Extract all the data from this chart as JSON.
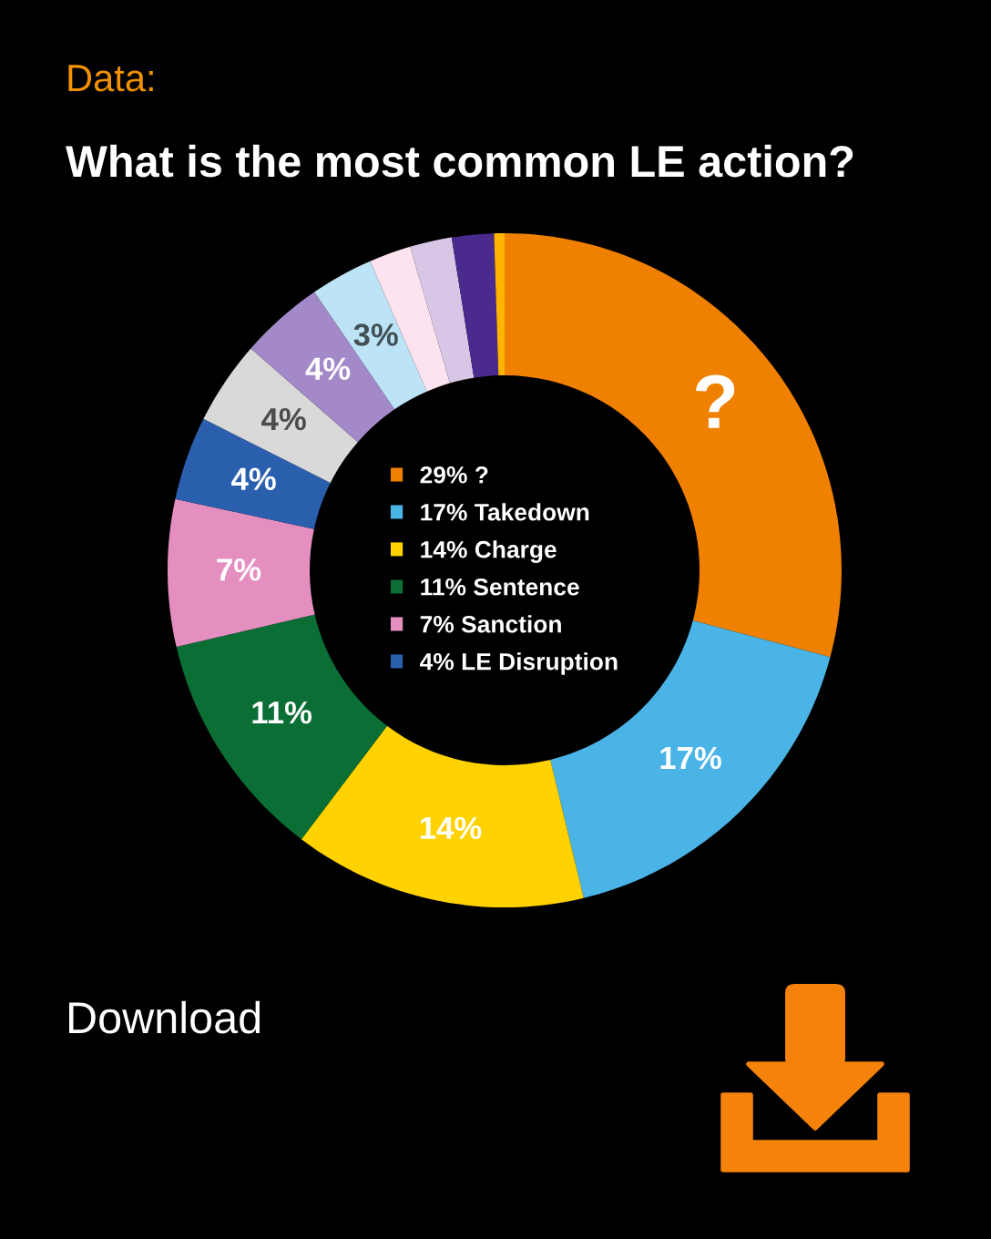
{
  "chart_data": {
    "type": "donut",
    "subtitle": "Data:",
    "title": "What is the most common LE action?",
    "categories": [
      "29% ?",
      "17% Takedown",
      "14% Charge",
      "11% Sentence",
      "7% Sanction",
      "4% LE Disruption",
      null,
      null,
      null,
      null,
      null,
      null,
      null
    ],
    "values": [
      29,
      17,
      14,
      11,
      7,
      4,
      4,
      4,
      3,
      2,
      2,
      2,
      0.5
    ],
    "colors": [
      "#f08000",
      "#4bb4e6",
      "#ffd200",
      "#0b6e35",
      "#e58fc1",
      "#2a5fae",
      "#d9d9d9",
      "#a389c8",
      "#bde4f6",
      "#fde3ef",
      "#d8c6e6",
      "#4a2a8c",
      "#ffb400"
    ],
    "value_labels": [
      "?",
      "17%",
      "14%",
      "11%",
      "7%",
      "4%",
      "4%",
      "4%",
      "3%",
      null,
      null,
      null,
      null
    ],
    "legend": "center",
    "annotations": [
      "Download"
    ]
  }
}
